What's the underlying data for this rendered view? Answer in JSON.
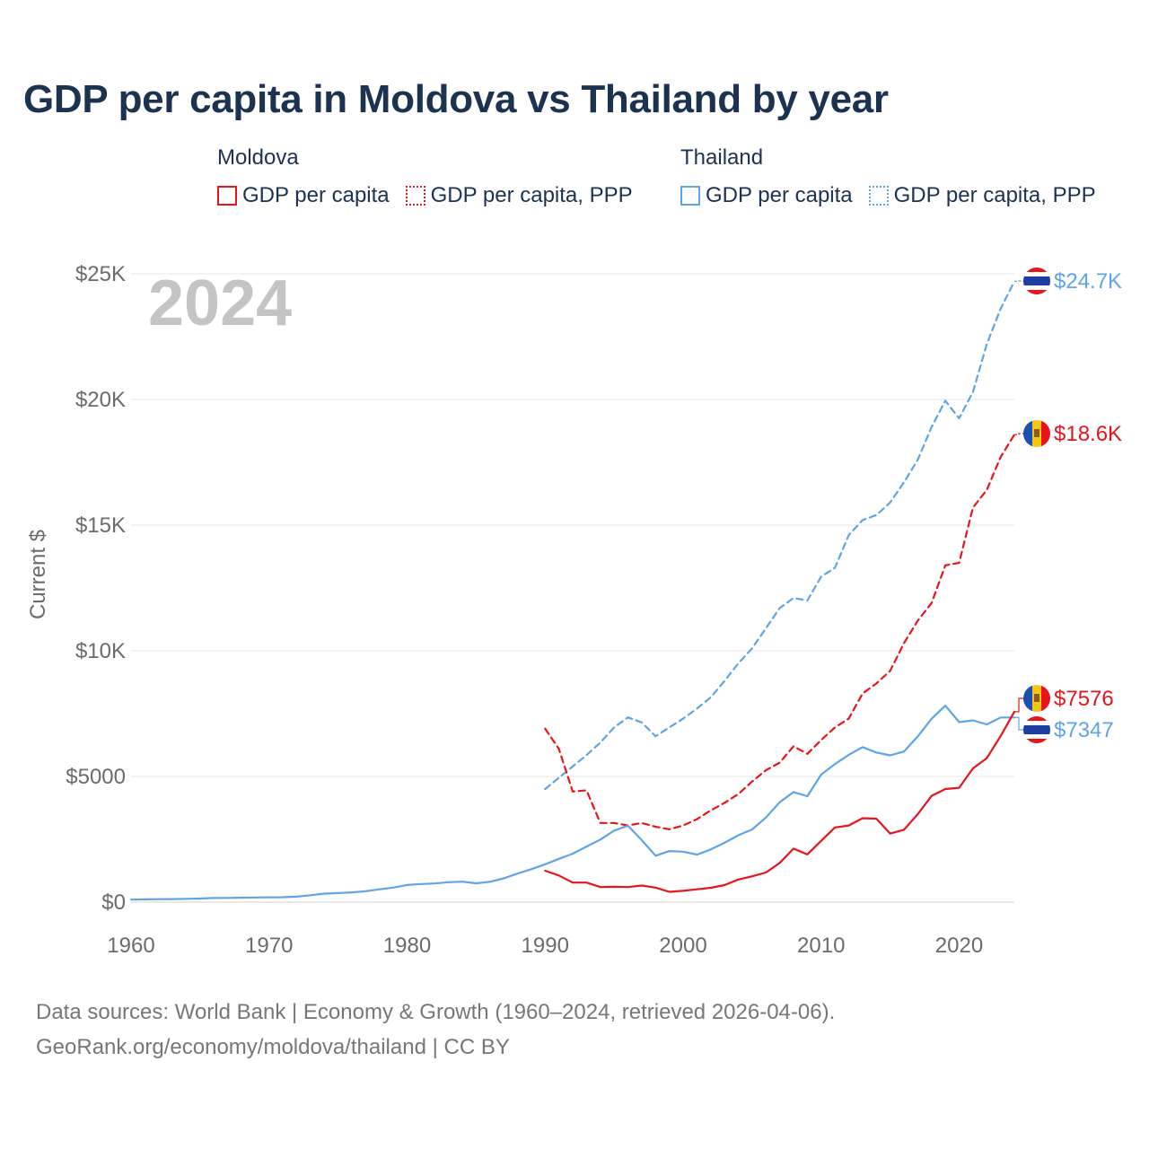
{
  "header": {
    "title": "GDP per capita in Moldova vs Thailand by year"
  },
  "legend": {
    "groups": [
      {
        "title": "Moldova",
        "color": "#e8141c",
        "items": [
          {
            "label": "GDP per capita",
            "style": "solid"
          },
          {
            "label": "GDP per capita, PPP",
            "style": "dotted"
          }
        ]
      },
      {
        "title": "Thailand",
        "color": "#5ea5e6",
        "items": [
          {
            "label": "GDP per capita",
            "style": "solid"
          },
          {
            "label": "GDP per capita, PPP",
            "style": "dotted"
          }
        ]
      }
    ]
  },
  "footer": {
    "source_line": "Data sources: World Bank | Economy & Growth (1960–2024, retrieved 2026-04-06).",
    "url_line": "GeoRank.org/economy/moldova/thailand | CC BY"
  },
  "chart_data": {
    "type": "line",
    "title": "GDP per capita in Moldova vs Thailand by year",
    "year_watermark": "2024",
    "xlabel": "",
    "ylabel": "Current $",
    "xlim": [
      1960,
      2024
    ],
    "ylim": [
      0,
      25000
    ],
    "x_ticks": [
      1960,
      1970,
      1980,
      1990,
      2000,
      2010,
      2020
    ],
    "x_tick_labels": [
      "1960",
      "1970",
      "1980",
      "1990",
      "2000",
      "2010",
      "2020"
    ],
    "y_ticks": [
      0,
      5000,
      10000,
      15000,
      20000,
      25000
    ],
    "y_tick_labels": [
      "$0",
      "$5000",
      "$10K",
      "$15K",
      "$20K",
      "$25K"
    ],
    "grid": true,
    "series": [
      {
        "name": "Thailand GDP per capita, PPP",
        "country": "Thailand",
        "color": "#5ea5e6",
        "dash": true,
        "end_label": "$24.7K",
        "x": [
          1990,
          1991,
          1992,
          1993,
          1994,
          1995,
          1996,
          1997,
          1998,
          1999,
          2000,
          2001,
          2002,
          2003,
          2004,
          2005,
          2006,
          2007,
          2008,
          2009,
          2010,
          2011,
          2012,
          2013,
          2014,
          2015,
          2016,
          2017,
          2018,
          2019,
          2020,
          2021,
          2022,
          2023,
          2024
        ],
        "values": [
          4500,
          4950,
          5400,
          5850,
          6350,
          6950,
          7350,
          7150,
          6600,
          6950,
          7300,
          7700,
          8150,
          8800,
          9500,
          10100,
          10900,
          11700,
          12100,
          12000,
          12950,
          13300,
          14600,
          15200,
          15400,
          15900,
          16700,
          17600,
          18900,
          19950,
          19250,
          20300,
          22200,
          23600,
          24700
        ]
      },
      {
        "name": "Moldova GDP per capita, PPP",
        "country": "Moldova",
        "color": "#e8141c",
        "dash": true,
        "end_label": "$18.6K",
        "x": [
          1990,
          1991,
          1992,
          1993,
          1994,
          1995,
          1996,
          1997,
          1998,
          1999,
          2000,
          2001,
          2002,
          2003,
          2004,
          2005,
          2006,
          2007,
          2008,
          2009,
          2010,
          2011,
          2012,
          2013,
          2014,
          2015,
          2016,
          2017,
          2018,
          2019,
          2020,
          2021,
          2022,
          2023,
          2024
        ],
        "values": [
          6900,
          6100,
          4400,
          4450,
          3150,
          3150,
          3050,
          3150,
          3000,
          2900,
          3050,
          3300,
          3650,
          3950,
          4300,
          4800,
          5250,
          5550,
          6200,
          5900,
          6450,
          6950,
          7300,
          8300,
          8700,
          9200,
          10300,
          11200,
          11900,
          13400,
          13500,
          15700,
          16400,
          17700,
          18600
        ]
      },
      {
        "name": "Thailand GDP per capita",
        "country": "Thailand",
        "color": "#5ea5e6",
        "dash": false,
        "end_label": "$7347",
        "x": [
          1960,
          1961,
          1962,
          1963,
          1964,
          1965,
          1966,
          1967,
          1968,
          1969,
          1970,
          1971,
          1972,
          1973,
          1974,
          1975,
          1976,
          1977,
          1978,
          1979,
          1980,
          1981,
          1982,
          1983,
          1984,
          1985,
          1986,
          1987,
          1988,
          1989,
          1990,
          1991,
          1992,
          1993,
          1994,
          1995,
          1996,
          1997,
          1998,
          1999,
          2000,
          2001,
          2002,
          2003,
          2004,
          2005,
          2006,
          2007,
          2008,
          2009,
          2010,
          2011,
          2012,
          2013,
          2014,
          2015,
          2016,
          2017,
          2018,
          2019,
          2020,
          2021,
          2022,
          2023,
          2024
        ],
        "values": [
          101,
          110,
          118,
          122,
          132,
          142,
          163,
          169,
          177,
          187,
          192,
          196,
          218,
          275,
          338,
          361,
          391,
          434,
          509,
          577,
          683,
          720,
          744,
          794,
          813,
          751,
          812,
          946,
          1136,
          1310,
          1508,
          1723,
          1927,
          2209,
          2491,
          2847,
          3044,
          2468,
          1846,
          2033,
          2008,
          1891,
          2096,
          2359,
          2660,
          2894,
          3369,
          3974,
          4380,
          4213,
          5076,
          5492,
          5861,
          6168,
          5952,
          5840,
          5993,
          6594,
          7297,
          7818,
          7160,
          7231,
          7070,
          7347,
          7347
        ]
      },
      {
        "name": "Moldova GDP per capita",
        "country": "Moldova",
        "color": "#e8141c",
        "dash": false,
        "end_label": "$7576",
        "x": [
          1990,
          1991,
          1992,
          1993,
          1994,
          1995,
          1996,
          1997,
          1998,
          1999,
          2000,
          2001,
          2002,
          2003,
          2004,
          2005,
          2006,
          2007,
          2008,
          2009,
          2010,
          2011,
          2012,
          2013,
          2014,
          2015,
          2016,
          2017,
          2018,
          2019,
          2020,
          2021,
          2022,
          2023,
          2024
        ],
        "values": [
          1250,
          1060,
          780,
          780,
          600,
          610,
          600,
          660,
          580,
          410,
          450,
          510,
          570,
          680,
          900,
          1030,
          1180,
          1560,
          2130,
          1900,
          2440,
          2970,
          3050,
          3340,
          3320,
          2730,
          2880,
          3500,
          4230,
          4500,
          4550,
          5320,
          5730,
          6600,
          7576
        ]
      }
    ]
  }
}
